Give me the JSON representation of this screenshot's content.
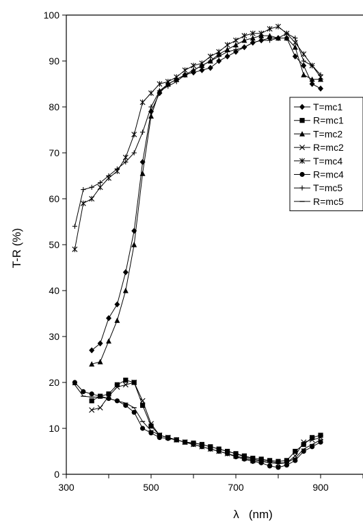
{
  "chart_data": {
    "type": "line",
    "title": "",
    "xlabel": "λ   (nm)",
    "ylabel": "T-R (%)",
    "xlim": [
      300,
      1000
    ],
    "ylim": [
      0,
      100
    ],
    "x_ticks": [
      300,
      500,
      700,
      900
    ],
    "y_ticks": [
      0,
      10,
      20,
      30,
      40,
      50,
      60,
      70,
      80,
      90,
      100
    ],
    "grid": false,
    "legend_position": "right",
    "series": [
      {
        "name": "T=mc1",
        "marker": "diamond",
        "x": [
          360,
          380,
          400,
          420,
          440,
          460,
          480,
          500,
          520,
          540,
          560,
          580,
          600,
          620,
          640,
          660,
          680,
          700,
          720,
          740,
          760,
          780,
          800,
          820,
          840,
          860,
          880,
          900
        ],
        "y": [
          27,
          28.5,
          34,
          37,
          44,
          53,
          68,
          79,
          83,
          85,
          86,
          87,
          87.5,
          88,
          88.5,
          90,
          91,
          92,
          93,
          94,
          94.5,
          95,
          95,
          95,
          91,
          89,
          85,
          84
        ]
      },
      {
        "name": "R=mc1",
        "marker": "square",
        "x": [
          360,
          380,
          400,
          420,
          440,
          460,
          480,
          500,
          520,
          540,
          560,
          580,
          600,
          620,
          640,
          660,
          680,
          700,
          720,
          740,
          760,
          780,
          800,
          820,
          840,
          860,
          880,
          900
        ],
        "y": [
          16,
          17,
          17.5,
          19.5,
          20.5,
          20,
          15,
          10.5,
          8.5,
          8,
          7.5,
          7,
          6.8,
          6.5,
          6,
          5.5,
          5,
          4.5,
          4,
          3.5,
          3.3,
          3,
          2.8,
          3,
          5,
          6.5,
          8,
          8.5
        ]
      },
      {
        "name": "T=mc2",
        "marker": "triangle",
        "x": [
          360,
          380,
          400,
          420,
          440,
          460,
          480,
          500,
          520,
          540,
          560,
          580,
          600,
          620,
          640,
          660,
          680,
          700,
          720,
          740,
          760,
          780,
          800,
          820,
          840,
          860,
          880,
          900
        ],
        "y": [
          24,
          24.5,
          29,
          33.5,
          40,
          50,
          65.5,
          78,
          83.5,
          85,
          86,
          87,
          88,
          89,
          90,
          91.5,
          92.5,
          93.5,
          94.5,
          95,
          95.5,
          95.5,
          95,
          95,
          93,
          87,
          86,
          86
        ]
      },
      {
        "name": "R=mc2",
        "marker": "x",
        "x": [
          360,
          380,
          400,
          420,
          440,
          460,
          480,
          500,
          520,
          540,
          560,
          580,
          600,
          620,
          640,
          660,
          680,
          700,
          720,
          740,
          760,
          780,
          800,
          820,
          840,
          860,
          880,
          900
        ],
        "y": [
          14,
          14.5,
          17,
          19,
          19.5,
          20,
          16,
          11,
          8.5,
          8,
          7.5,
          7,
          6.5,
          6,
          5.5,
          5,
          4.5,
          4,
          3.5,
          3,
          2.8,
          2.5,
          2.3,
          2.5,
          4,
          7,
          7.5,
          8
        ]
      },
      {
        "name": "T=mc4",
        "marker": "asterisk",
        "x": [
          320,
          340,
          360,
          380,
          400,
          420,
          440,
          460,
          480,
          500,
          520,
          540,
          560,
          580,
          600,
          620,
          640,
          660,
          680,
          700,
          720,
          740,
          760,
          780,
          800,
          820,
          840,
          860,
          880,
          900
        ],
        "y": [
          49,
          59,
          60,
          62.5,
          64.5,
          66,
          69,
          74,
          81,
          83,
          85,
          85.5,
          86.5,
          88,
          89,
          89.5,
          91,
          92,
          93.5,
          94.5,
          95.5,
          96,
          96,
          97,
          97.5,
          96,
          94,
          91.5,
          89,
          86.5
        ]
      },
      {
        "name": "R=mc4",
        "marker": "circle",
        "x": [
          320,
          340,
          360,
          380,
          400,
          420,
          440,
          460,
          480,
          500,
          520,
          540,
          560,
          580,
          600,
          620,
          640,
          660,
          680,
          700,
          720,
          740,
          760,
          780,
          800,
          820,
          840,
          860,
          880,
          900
        ],
        "y": [
          20,
          18,
          17.5,
          17,
          16.5,
          16,
          15,
          13.5,
          10,
          9,
          8,
          7.8,
          7.5,
          7,
          6.5,
          6,
          5.5,
          5,
          4.5,
          3.8,
          3.3,
          2.8,
          2.5,
          1.8,
          1.5,
          2,
          3,
          5,
          6,
          7
        ]
      },
      {
        "name": "T=mc5",
        "marker": "plus",
        "x": [
          320,
          340,
          360,
          380,
          400,
          420,
          440,
          460,
          480,
          500,
          520,
          540,
          560,
          580,
          600,
          620,
          640,
          660,
          680,
          700,
          720,
          740,
          760,
          780,
          800,
          820,
          840,
          860,
          880,
          900
        ],
        "y": [
          54,
          62,
          62.5,
          63.5,
          65,
          66.5,
          68,
          70,
          74.5,
          80,
          83.5,
          84.5,
          85.5,
          87,
          88,
          89,
          90,
          91,
          92,
          92.5,
          93,
          94,
          94.5,
          94.5,
          95,
          96,
          95,
          90,
          89,
          87
        ]
      },
      {
        "name": "R=mc5",
        "marker": "dash",
        "x": [
          320,
          340,
          360,
          380,
          400,
          420,
          440,
          460,
          480,
          500,
          520,
          540,
          560,
          580,
          600,
          620,
          640,
          660,
          680,
          700,
          720,
          740,
          760,
          780,
          800,
          820,
          840,
          860,
          880,
          900
        ],
        "y": [
          19.5,
          17,
          16.8,
          16.8,
          16.5,
          16,
          15.5,
          14.5,
          11.5,
          9.5,
          8.5,
          8,
          7.5,
          7,
          6.8,
          6.5,
          6,
          5.5,
          5,
          4.5,
          3.8,
          3.3,
          3,
          2.8,
          2.5,
          2.5,
          3.5,
          5.5,
          6.5,
          7.5
        ]
      }
    ]
  }
}
